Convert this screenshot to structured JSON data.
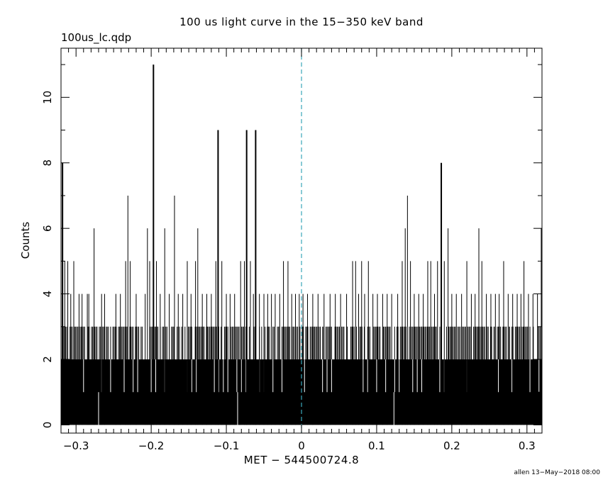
{
  "chart_data": {
    "type": "bar",
    "title": "100 us light curve in the 15−350 keV band",
    "subtitle": "100us_lc.qdp",
    "xlabel": "MET − 544500724.8",
    "ylabel": "Counts",
    "footer": "allen 13−May−2018 08:00",
    "xlim": [
      -0.32,
      0.32
    ],
    "ylim": [
      -0.25,
      11.5
    ],
    "x_ticks": [
      -0.3,
      -0.2,
      -0.1,
      0,
      0.1,
      0.2,
      0.3
    ],
    "x_tick_labels": [
      "−0.3",
      "−0.2",
      "−0.1",
      "0",
      "0.1",
      "0.2",
      "0.3"
    ],
    "y_ticks": [
      0,
      2,
      4,
      6,
      8,
      10
    ],
    "y_tick_labels": [
      "0",
      "2",
      "4",
      "6",
      "8",
      "10"
    ],
    "bin_width": 0.0001,
    "trigger_line": {
      "x": 0,
      "style": "dashed",
      "color": "#3aa6b9"
    },
    "colors": {
      "bars": "#000000",
      "trigger": "#3aa6b9"
    },
    "baseline": {
      "min": 1,
      "max": 2,
      "typical": 2
    },
    "peaks": [
      {
        "x": -0.318,
        "y": 8
      },
      {
        "x": -0.315,
        "y": 5
      },
      {
        "x": -0.311,
        "y": 5
      },
      {
        "x": -0.307,
        "y": 4
      },
      {
        "x": -0.303,
        "y": 5
      },
      {
        "x": -0.296,
        "y": 4
      },
      {
        "x": -0.292,
        "y": 4
      },
      {
        "x": -0.285,
        "y": 4
      },
      {
        "x": -0.283,
        "y": 4
      },
      {
        "x": -0.276,
        "y": 6
      },
      {
        "x": -0.27,
        "y": 0
      },
      {
        "x": -0.266,
        "y": 4
      },
      {
        "x": -0.262,
        "y": 4
      },
      {
        "x": -0.247,
        "y": 4
      },
      {
        "x": -0.241,
        "y": 4
      },
      {
        "x": -0.234,
        "y": 5
      },
      {
        "x": -0.231,
        "y": 7
      },
      {
        "x": -0.228,
        "y": 5
      },
      {
        "x": -0.22,
        "y": 4
      },
      {
        "x": -0.208,
        "y": 4
      },
      {
        "x": -0.205,
        "y": 6
      },
      {
        "x": -0.202,
        "y": 5
      },
      {
        "x": -0.197,
        "y": 11
      },
      {
        "x": -0.193,
        "y": 5
      },
      {
        "x": -0.188,
        "y": 4
      },
      {
        "x": -0.182,
        "y": 6
      },
      {
        "x": -0.176,
        "y": 4
      },
      {
        "x": -0.169,
        "y": 7
      },
      {
        "x": -0.164,
        "y": 4
      },
      {
        "x": -0.158,
        "y": 4
      },
      {
        "x": -0.152,
        "y": 5
      },
      {
        "x": -0.147,
        "y": 4
      },
      {
        "x": -0.141,
        "y": 5
      },
      {
        "x": -0.138,
        "y": 6
      },
      {
        "x": -0.132,
        "y": 4
      },
      {
        "x": -0.126,
        "y": 4
      },
      {
        "x": -0.12,
        "y": 4
      },
      {
        "x": -0.114,
        "y": 5
      },
      {
        "x": -0.111,
        "y": 9
      },
      {
        "x": -0.106,
        "y": 5
      },
      {
        "x": -0.1,
        "y": 4
      },
      {
        "x": -0.095,
        "y": 4
      },
      {
        "x": -0.089,
        "y": 4
      },
      {
        "x": -0.085,
        "y": 0
      },
      {
        "x": -0.081,
        "y": 5
      },
      {
        "x": -0.076,
        "y": 5
      },
      {
        "x": -0.073,
        "y": 9
      },
      {
        "x": -0.068,
        "y": 5
      },
      {
        "x": -0.064,
        "y": 4
      },
      {
        "x": -0.061,
        "y": 9
      },
      {
        "x": -0.056,
        "y": 4
      },
      {
        "x": -0.05,
        "y": 4
      },
      {
        "x": -0.045,
        "y": 4
      },
      {
        "x": -0.04,
        "y": 4
      },
      {
        "x": -0.035,
        "y": 4
      },
      {
        "x": -0.029,
        "y": 4
      },
      {
        "x": -0.024,
        "y": 5
      },
      {
        "x": -0.018,
        "y": 5
      },
      {
        "x": -0.013,
        "y": 4
      },
      {
        "x": -0.008,
        "y": 4
      },
      {
        "x": -0.003,
        "y": 4
      },
      {
        "x": 0.002,
        "y": 4
      },
      {
        "x": 0.008,
        "y": 4
      },
      {
        "x": 0.015,
        "y": 4
      },
      {
        "x": 0.022,
        "y": 4
      },
      {
        "x": 0.03,
        "y": 4
      },
      {
        "x": 0.038,
        "y": 4
      },
      {
        "x": 0.045,
        "y": 4
      },
      {
        "x": 0.052,
        "y": 4
      },
      {
        "x": 0.06,
        "y": 4
      },
      {
        "x": 0.068,
        "y": 5
      },
      {
        "x": 0.072,
        "y": 5
      },
      {
        "x": 0.076,
        "y": 4
      },
      {
        "x": 0.08,
        "y": 5
      },
      {
        "x": 0.084,
        "y": 4
      },
      {
        "x": 0.089,
        "y": 5
      },
      {
        "x": 0.095,
        "y": 4
      },
      {
        "x": 0.101,
        "y": 4
      },
      {
        "x": 0.108,
        "y": 4
      },
      {
        "x": 0.114,
        "y": 4
      },
      {
        "x": 0.12,
        "y": 4
      },
      {
        "x": 0.123,
        "y": 0
      },
      {
        "x": 0.128,
        "y": 4
      },
      {
        "x": 0.134,
        "y": 5
      },
      {
        "x": 0.138,
        "y": 6
      },
      {
        "x": 0.141,
        "y": 7
      },
      {
        "x": 0.145,
        "y": 5
      },
      {
        "x": 0.15,
        "y": 4
      },
      {
        "x": 0.156,
        "y": 4
      },
      {
        "x": 0.162,
        "y": 4
      },
      {
        "x": 0.168,
        "y": 5
      },
      {
        "x": 0.172,
        "y": 5
      },
      {
        "x": 0.177,
        "y": 4
      },
      {
        "x": 0.181,
        "y": 5
      },
      {
        "x": 0.186,
        "y": 8
      },
      {
        "x": 0.19,
        "y": 5
      },
      {
        "x": 0.195,
        "y": 6
      },
      {
        "x": 0.2,
        "y": 4
      },
      {
        "x": 0.206,
        "y": 4
      },
      {
        "x": 0.213,
        "y": 4
      },
      {
        "x": 0.22,
        "y": 5
      },
      {
        "x": 0.226,
        "y": 4
      },
      {
        "x": 0.231,
        "y": 4
      },
      {
        "x": 0.236,
        "y": 6
      },
      {
        "x": 0.24,
        "y": 5
      },
      {
        "x": 0.246,
        "y": 4
      },
      {
        "x": 0.252,
        "y": 4
      },
      {
        "x": 0.258,
        "y": 4
      },
      {
        "x": 0.263,
        "y": 4
      },
      {
        "x": 0.269,
        "y": 5
      },
      {
        "x": 0.275,
        "y": 4
      },
      {
        "x": 0.281,
        "y": 4
      },
      {
        "x": 0.287,
        "y": 4
      },
      {
        "x": 0.292,
        "y": 4
      },
      {
        "x": 0.296,
        "y": 5
      },
      {
        "x": 0.302,
        "y": 4
      },
      {
        "x": 0.308,
        "y": 4
      },
      {
        "x": 0.314,
        "y": 4
      },
      {
        "x": 0.319,
        "y": 6
      }
    ]
  }
}
